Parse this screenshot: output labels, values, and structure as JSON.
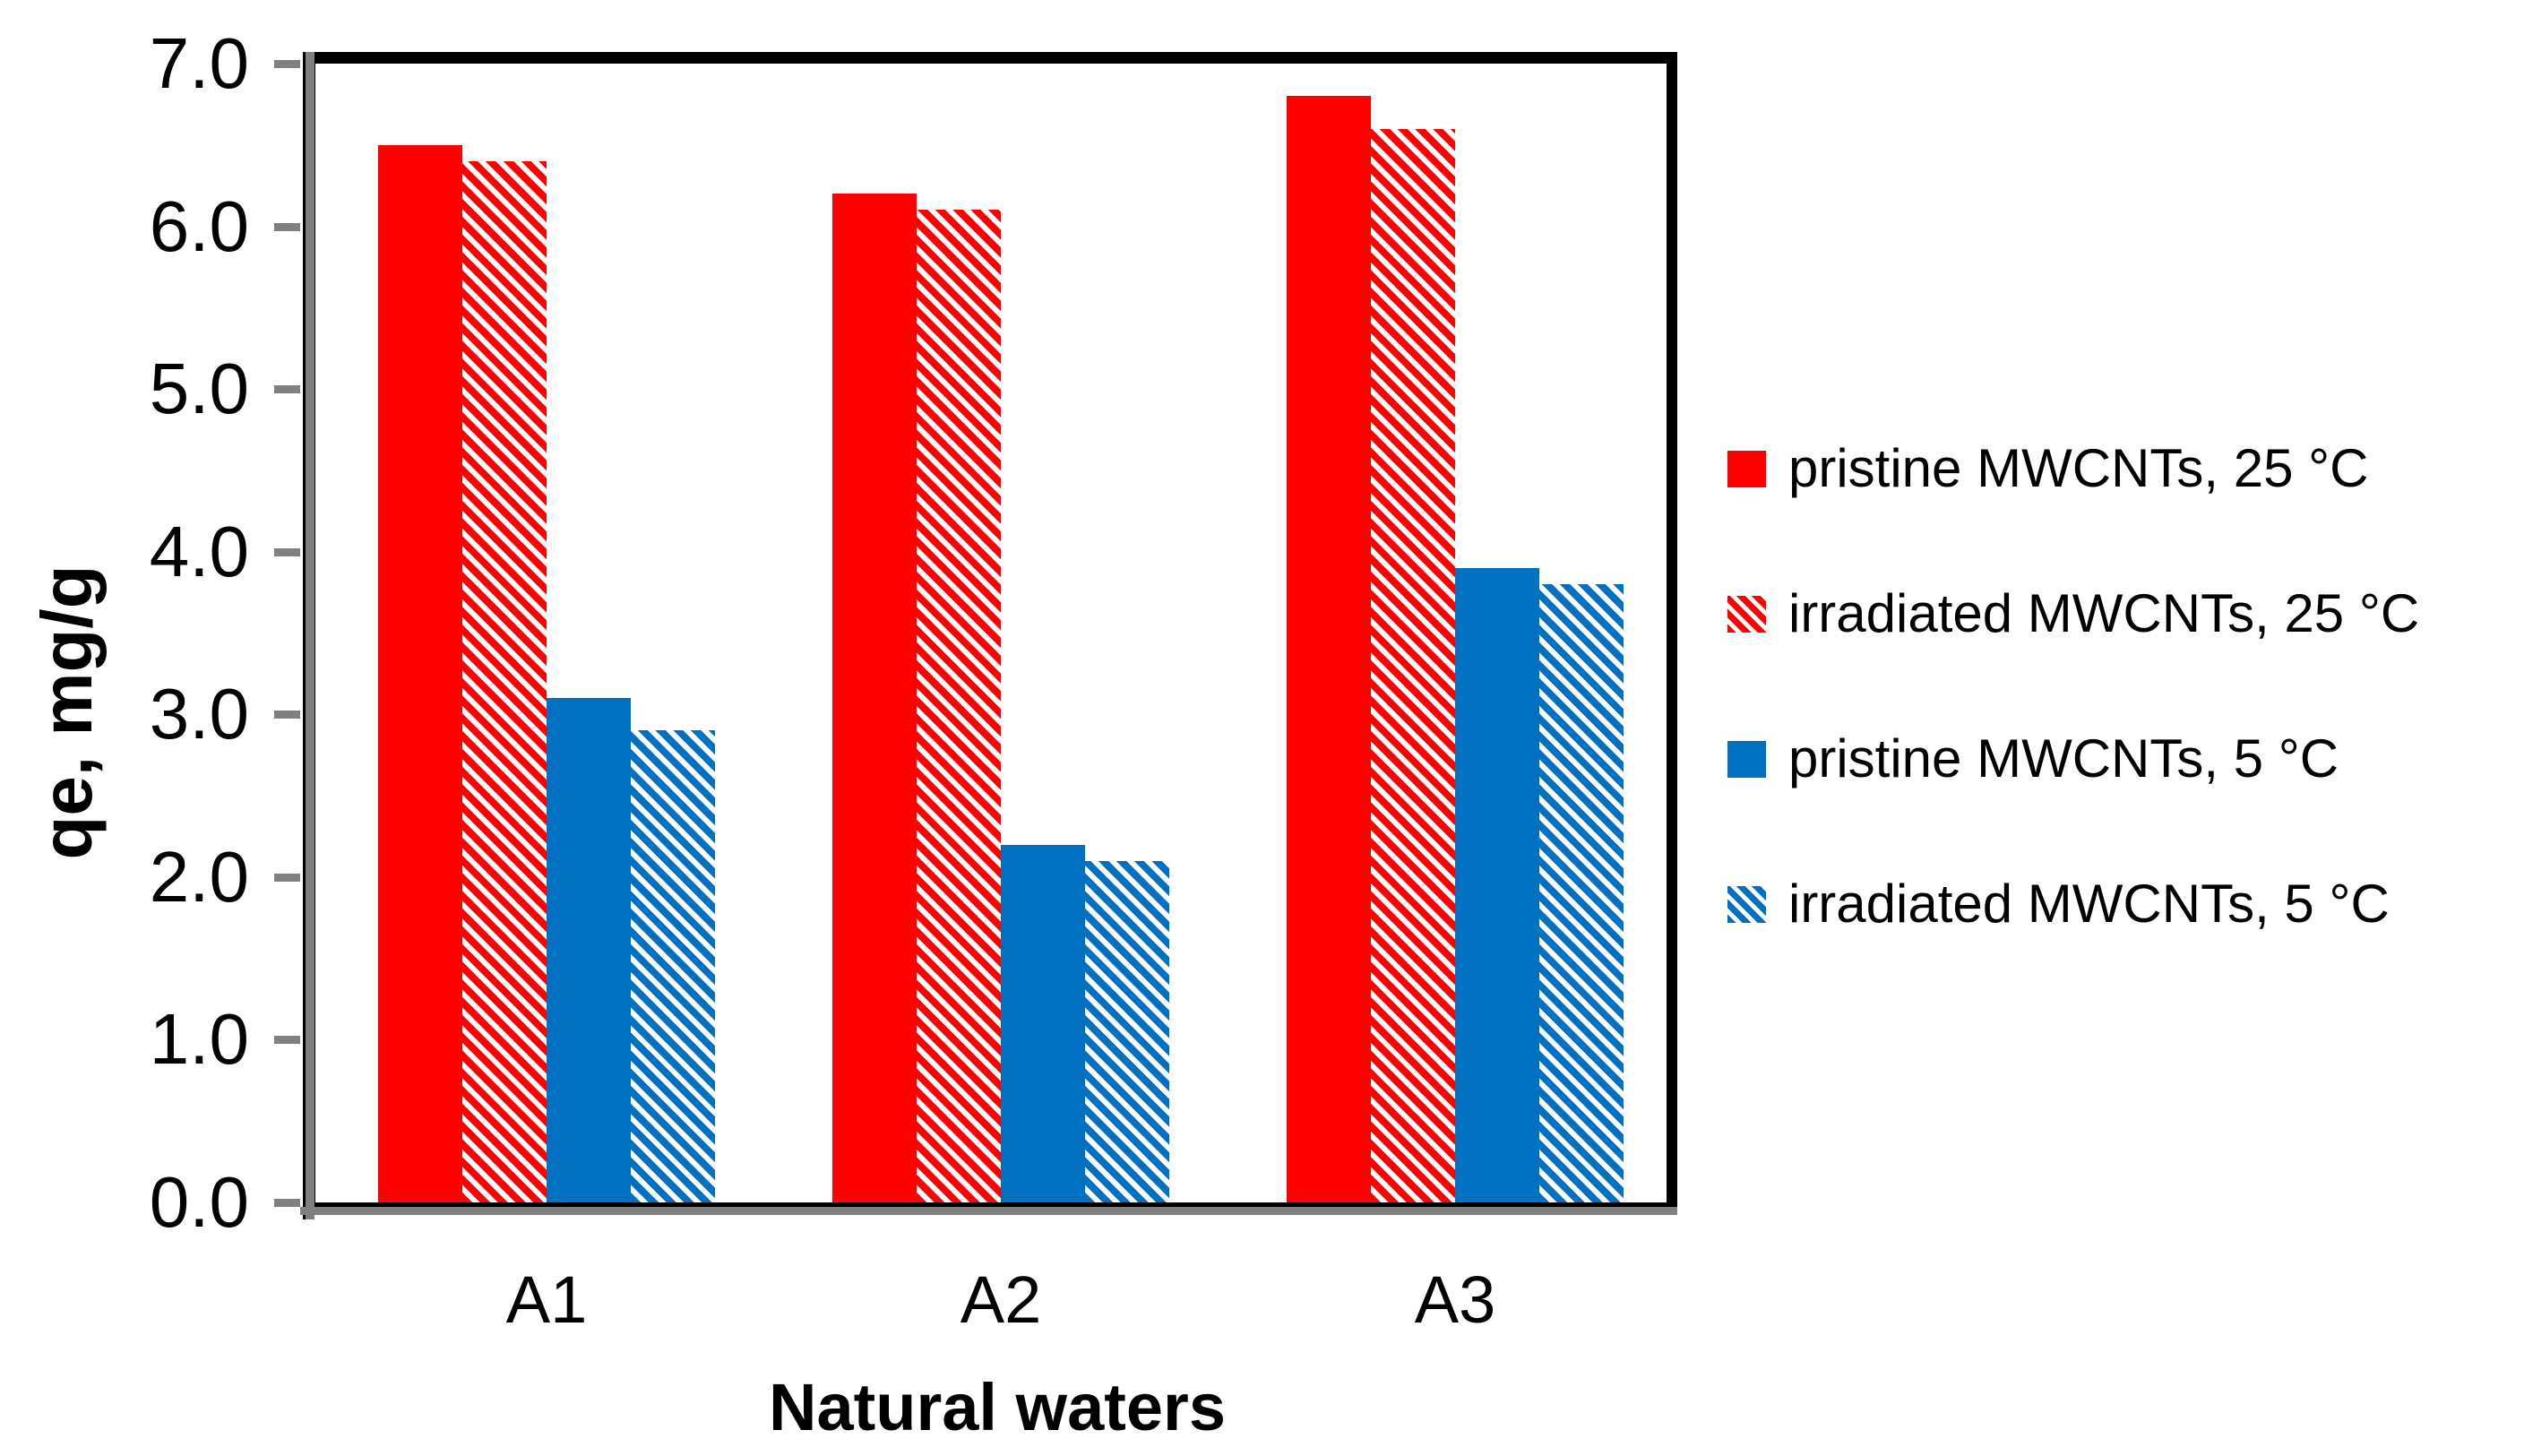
{
  "chart_data": {
    "type": "bar",
    "title": "",
    "xlabel": "Natural waters",
    "ylabel": "qe, mg/g",
    "categories": [
      "A1",
      "A2",
      "A3"
    ],
    "series": [
      {
        "name": "pristine MWCNTs, 25 °C",
        "color": "#FF0000",
        "pattern": "solid",
        "values": [
          6.5,
          6.2,
          6.8
        ]
      },
      {
        "name": "irradiated MWCNTs, 25 °C",
        "color": "#FF0000",
        "pattern": "diagonal-hatch",
        "values": [
          6.4,
          6.1,
          6.6
        ]
      },
      {
        "name": "pristine MWCNTs, 5 °C",
        "color": "#0070C0",
        "pattern": "solid",
        "values": [
          3.1,
          2.2,
          3.9
        ]
      },
      {
        "name": "irradiated MWCNTs, 5 °C",
        "color": "#0070C0",
        "pattern": "diagonal-hatch",
        "values": [
          2.9,
          2.1,
          3.8
        ]
      }
    ],
    "ylim": [
      0.0,
      7.0
    ],
    "yticks": [
      {
        "value": 0,
        "label": "0.0"
      },
      {
        "value": 1,
        "label": "1.0"
      },
      {
        "value": 2,
        "label": "2.0"
      },
      {
        "value": 3,
        "label": "3.0"
      },
      {
        "value": 4,
        "label": "4.0"
      },
      {
        "value": 5,
        "label": "5.0"
      },
      {
        "value": 6,
        "label": "6.0"
      },
      {
        "value": 7,
        "label": "7.0"
      },
      {
        "value": 0,
        "label": "0.0"
      }
    ],
    "grid": false,
    "legend_position": "right",
    "colors": {
      "red_series": "#FF0000",
      "blue_series": "#0070C0",
      "axis_line": "#808080",
      "frame": "#000000",
      "background": "#FFFFFF",
      "text": "#000000"
    }
  }
}
